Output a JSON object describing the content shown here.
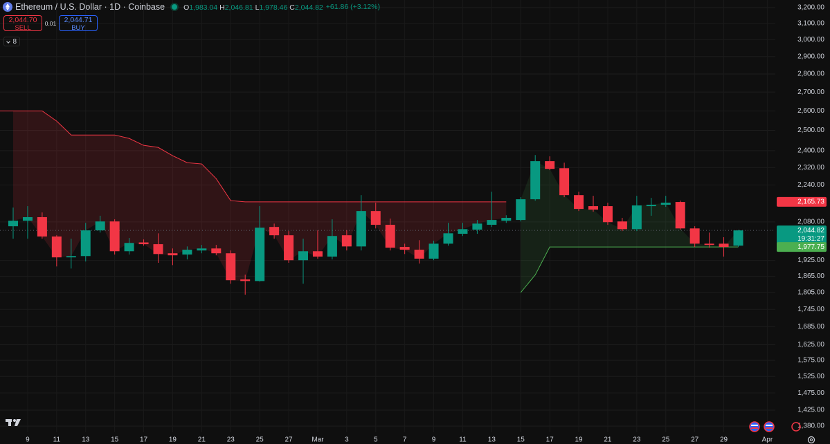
{
  "chart_data": {
    "type": "candlestick",
    "symbol": "Ethereum / U.S. Dollar · 1D · Coinbase",
    "ohlc_legend": [
      {
        "key": "O",
        "value": "1,983.04"
      },
      {
        "key": "H",
        "value": "2,046.81"
      },
      {
        "key": "L",
        "value": "1,978.46"
      },
      {
        "key": "C",
        "value": "2,044.82"
      }
    ],
    "change": "+61.86 (+3.12%)",
    "trade": {
      "sell_price": "2,044.70",
      "sell_label": "SELL",
      "spread": "0.01",
      "buy_price": "2,044.71",
      "buy_label": "BUY"
    },
    "indicator_count": "8",
    "categories": [
      null,
      "9",
      null,
      "11",
      null,
      "13",
      null,
      "15",
      null,
      "17",
      null,
      "19",
      null,
      "21",
      null,
      "23",
      null,
      "25",
      null,
      "27",
      null,
      "Mar",
      null,
      "3",
      null,
      "5",
      null,
      "7",
      null,
      "9",
      null,
      "11",
      null,
      "13",
      null,
      "15",
      null,
      "17",
      null,
      "19",
      null,
      "21",
      null,
      "23",
      null,
      "25",
      null,
      "27",
      null,
      "29",
      null,
      null,
      "Apr"
    ],
    "ohlc": {
      "open": [
        2062,
        2085,
        2100,
        2020,
        1937,
        1942,
        2045,
        2082,
        1961,
        1996,
        1989,
        1953,
        1948,
        1964,
        1972,
        1953,
        1853,
        1847,
        2059,
        2025,
        1926,
        1961,
        1940,
        2025,
        1980,
        2126,
        2068,
        1978,
        1967,
        1932,
        1991,
        2031,
        2048,
        2068,
        2085,
        2088,
        2177,
        2350,
        2317,
        2195,
        2147,
        2147,
        2082,
        2050,
        2147,
        2153,
        2165,
        2053,
        1991,
        1991,
        1983.04,
        null,
        null
      ],
      "high": [
        2141,
        2147,
        2120,
        2025,
        2011,
        2076,
        2106,
        2091,
        2014,
        2008,
        2033,
        1972,
        1980,
        1986,
        1986,
        1964,
        1871,
        2147,
        2073,
        2042,
        2011,
        2045,
        2091,
        2045,
        2195,
        2162,
        2094,
        1991,
        2005,
        2003,
        2076,
        2076,
        2088,
        2210,
        2108,
        2186,
        2379,
        2373,
        2343,
        2210,
        2192,
        2162,
        2097,
        2192,
        2183,
        2192,
        2171,
        2062,
        2036,
        2017,
        2046.81,
        null,
        null
      ],
      "low": [
        2011,
        2011,
        2011,
        1902,
        1894,
        1921,
        2036,
        1948,
        1948,
        1983,
        1916,
        1907,
        1929,
        1953,
        1945,
        1837,
        1797,
        1845,
        2011,
        1916,
        1837,
        1932,
        1929,
        1964,
        1964,
        2053,
        1964,
        1950,
        1913,
        1926,
        1983,
        2022,
        2031,
        2059,
        2076,
        2082,
        2171,
        2308,
        2186,
        2126,
        2123,
        2068,
        2042,
        2042,
        2106,
        2144,
        2048,
        1978,
        1975,
        1940,
        1978.46,
        null,
        null
      ],
      "close": [
        2085,
        2100,
        2020,
        1937,
        1942,
        2045,
        2082,
        1961,
        1994,
        1989,
        1950,
        1945,
        1967,
        1972,
        1953,
        1850,
        1847,
        2056,
        2025,
        1926,
        1961,
        1940,
        2022,
        1980,
        2126,
        2068,
        1975,
        1967,
        1932,
        1991,
        2033,
        2050,
        2073,
        2088,
        2097,
        2177,
        2350,
        2314,
        2195,
        2135,
        2132,
        2079,
        2050,
        2150,
        2153,
        2162,
        2053,
        1991,
        1986,
        1978,
        2044.82,
        null,
        null
      ]
    },
    "up_color": "#089981",
    "down_color": "#f23645",
    "upper_line": {
      "color": "#f23645",
      "values": [
        2600,
        2600,
        2600,
        2547,
        2477,
        2477,
        2477,
        2477,
        2460,
        2426,
        2416,
        2376,
        2343,
        2337,
        2269,
        2171,
        2165.73,
        2165.73,
        2165.73,
        2165.73,
        2165.73,
        2165.73,
        2165.73,
        2165.73,
        2165.73,
        2165.73,
        2165.73,
        2165.73,
        2165.73,
        2165.73,
        2165.73,
        2165.73,
        2165.73,
        2165.73,
        2165.73,
        null,
        null,
        null,
        null,
        null,
        null,
        null,
        null,
        null,
        null,
        null,
        null,
        null,
        null,
        null,
        null,
        null,
        null
      ]
    },
    "lower_line": {
      "color": "#4caf50",
      "values": [
        null,
        null,
        null,
        null,
        null,
        null,
        null,
        null,
        null,
        null,
        null,
        null,
        null,
        null,
        null,
        null,
        null,
        null,
        null,
        null,
        null,
        null,
        null,
        null,
        null,
        null,
        null,
        null,
        null,
        null,
        null,
        null,
        null,
        null,
        null,
        1805,
        1870,
        1977.75,
        1977.75,
        1977.75,
        1977.75,
        1977.75,
        1977.75,
        1977.75,
        1977.75,
        1977.75,
        1977.75,
        1977.75,
        1977.75,
        1977.75,
        1977.75,
        null,
        null
      ]
    },
    "log_scale": true,
    "grid": true,
    "ylim": [
      1363,
      3249
    ],
    "yticks": [
      {
        "value": 3200,
        "label": "3,200.00"
      },
      {
        "value": 3100,
        "label": "3,100.00"
      },
      {
        "value": 3000,
        "label": "3,000.00"
      },
      {
        "value": 2900,
        "label": "2,900.00"
      },
      {
        "value": 2800,
        "label": "2,800.00"
      },
      {
        "value": 2700,
        "label": "2,700.00"
      },
      {
        "value": 2600,
        "label": "2,600.00"
      },
      {
        "value": 2500,
        "label": "2,500.00"
      },
      {
        "value": 2400,
        "label": "2,400.00"
      },
      {
        "value": 2320,
        "label": "2,320.00"
      },
      {
        "value": 2240,
        "label": "2,240.00"
      },
      {
        "value": 2080,
        "label": "2,080.00"
      },
      {
        "value": 1925,
        "label": "1,925.00"
      },
      {
        "value": 1865,
        "label": "1,865.00"
      },
      {
        "value": 1805,
        "label": "1,805.00"
      },
      {
        "value": 1745,
        "label": "1,745.00"
      },
      {
        "value": 1685,
        "label": "1,685.00"
      },
      {
        "value": 1625,
        "label": "1,625.00"
      },
      {
        "value": 1575,
        "label": "1,575.00"
      },
      {
        "value": 1525,
        "label": "1,525.00"
      },
      {
        "value": 1475,
        "label": "1,475.00"
      },
      {
        "value": 1425,
        "label": "1,425.00"
      },
      {
        "value": 1380,
        "label": "1,380.00"
      }
    ],
    "price_labels": [
      {
        "value": 2165.73,
        "label": "2,165.73",
        "color": "#f23645"
      },
      {
        "value": 2044.82,
        "label": "2,044.82",
        "sublabel": "19:31:27",
        "color": "#089981"
      },
      {
        "value": 1977.75,
        "label": "1,977.75",
        "color": "#4caf50"
      }
    ]
  }
}
